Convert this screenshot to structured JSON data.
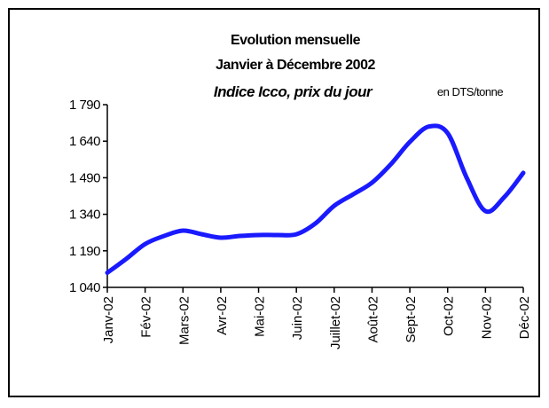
{
  "chart_data": {
    "type": "line",
    "title": [
      "Evolution mensuelle",
      "Janvier à Décembre 2002"
    ],
    "subtitle": "Indice  Icco, prix du jour",
    "unit_note": "en DTS/tonne",
    "categories": [
      "Janv-02",
      null,
      "Fév-02",
      null,
      "Mars-02",
      null,
      "Avr-02",
      null,
      "Mai-02",
      null,
      "Juin-02",
      null,
      "Juillet-02",
      null,
      "Août-02",
      null,
      "Sept-02",
      null,
      "Oct-02",
      null,
      "Nov-02",
      null,
      "Déc-02"
    ],
    "series": [
      {
        "name": "Indice Icco",
        "color": "#1a1aff",
        "values": [
          1100,
          1157,
          1218,
          1251,
          1273,
          1258,
          1244,
          1251,
          1255,
          1255,
          1258,
          1302,
          1375,
          1422,
          1470,
          1546,
          1637,
          1700,
          1673,
          1491,
          1353,
          1411,
          1510
        ]
      }
    ],
    "ylim": [
      1040,
      1790
    ],
    "yticks": [
      {
        "value": 1040,
        "label": "1 040"
      },
      {
        "value": 1190,
        "label": "1 190"
      },
      {
        "value": 1340,
        "label": "1 340"
      },
      {
        "value": 1490,
        "label": "1 490"
      },
      {
        "value": 1640,
        "label": "1 640"
      },
      {
        "value": 1790,
        "label": "1 790"
      }
    ],
    "grid": false
  }
}
